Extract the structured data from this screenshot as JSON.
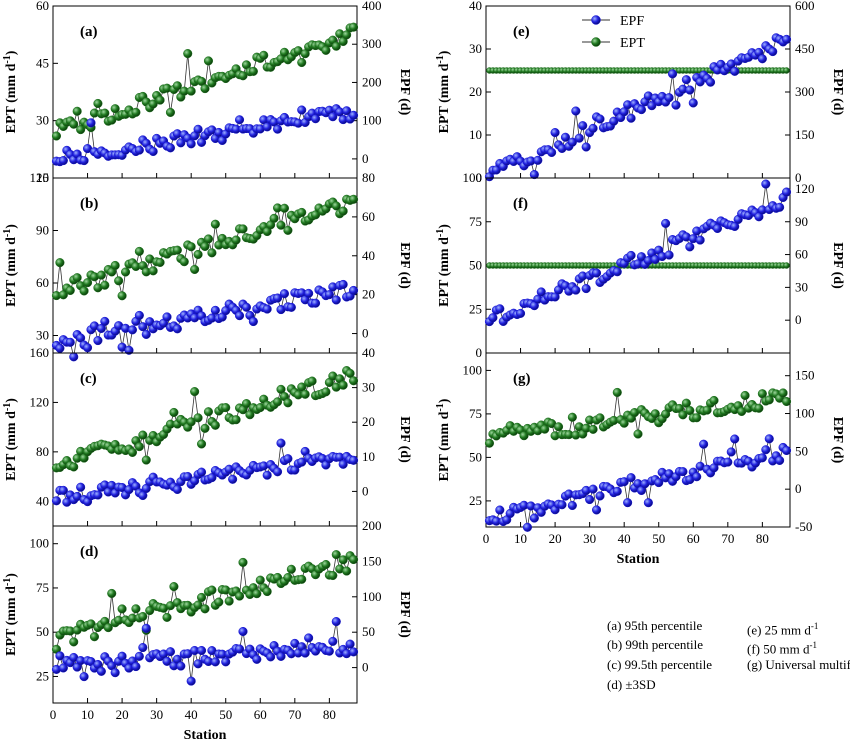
{
  "labels": {
    "ylabel_left": "EPT (mm d",
    "ylabel_sup": "-1",
    "ylabel_close": ")",
    "ylabel_right": "EPF (d)",
    "xlabel": "Station"
  },
  "legend": [
    {
      "label": "EPF",
      "color": "#1515d4"
    },
    {
      "label": "EPT",
      "color": "#1f6e1f"
    }
  ],
  "notes": [
    {
      "text": "(a) 95th percentile"
    },
    {
      "text": "(b) 99th percentile"
    },
    {
      "text": "(c) 99.5th percentile"
    },
    {
      "text": "(d) ±3SD"
    },
    {
      "text": "(e) 25 mm d",
      "sup": "-1"
    },
    {
      "text": "(f) 50 mm d",
      "sup": "-1"
    },
    {
      "text": "(g) Universal multifractals"
    }
  ],
  "chart_data": [
    {
      "panel": "(a)",
      "type": "line",
      "left_ylim": [
        15,
        60
      ],
      "left_ticks": [
        "15",
        "30",
        "45",
        "60"
      ],
      "right_ylim": [
        -50,
        400
      ],
      "right_ticks": [
        "0",
        "100",
        "200",
        "300",
        "400"
      ],
      "ept_start": 27,
      "ept_end": 53,
      "epf_start": 0,
      "epf_end": 120,
      "xlim": [
        0,
        88
      ],
      "xticks": [],
      "legend": false
    },
    {
      "panel": "(b)",
      "type": "line",
      "left_ylim": [
        20,
        120
      ],
      "left_ticks": [
        "30",
        "60",
        "90",
        "120"
      ],
      "right_ylim": [
        -10,
        80
      ],
      "right_ticks": [
        "0",
        "20",
        "40",
        "60",
        "80"
      ],
      "ept_start": 55,
      "ept_end": 106,
      "epf_start": -5,
      "epf_end": 23,
      "xlim": [
        0,
        88
      ],
      "xticks": [],
      "legend": false
    },
    {
      "panel": "(c)",
      "type": "line",
      "left_ylim": [
        20,
        160
      ],
      "left_ticks": [
        "40",
        "80",
        "120",
        "160"
      ],
      "right_ylim": [
        -10,
        40
      ],
      "right_ticks": [
        "0",
        "10",
        "20",
        "30",
        "40"
      ],
      "ept_start": 70,
      "ept_end": 141,
      "epf_start": -2,
      "epf_end": 10,
      "xlim": [
        0,
        88
      ],
      "xticks": [],
      "legend": false
    },
    {
      "panel": "(d)",
      "type": "line",
      "left_ylim": [
        10,
        110
      ],
      "left_ticks": [
        "25",
        "50",
        "75",
        "100"
      ],
      "right_ylim": [
        -50,
        200
      ],
      "right_ticks": [
        "0",
        "50",
        "100",
        "150",
        "200"
      ],
      "ept_start": 46,
      "ept_end": 90,
      "epf_start": 0,
      "epf_end": 30,
      "xlim": [
        0,
        88
      ],
      "xticks": [
        "0",
        "10",
        "20",
        "30",
        "40",
        "50",
        "60",
        "70",
        "80"
      ],
      "legend": false
    },
    {
      "panel": "(e)",
      "type": "line",
      "left_ylim": [
        0,
        40
      ],
      "left_ticks": [
        "0",
        "10",
        "20",
        "30",
        "40"
      ],
      "right_ylim": [
        0,
        600
      ],
      "right_ticks": [
        "0",
        "150",
        "300",
        "450",
        "600"
      ],
      "ept_start": 25,
      "ept_end": 25,
      "epf_start": 10,
      "epf_end": 480,
      "xlim": [
        0,
        88
      ],
      "xticks": [],
      "legend": true
    },
    {
      "panel": "(f)",
      "type": "line",
      "left_ylim": [
        0,
        100
      ],
      "left_ticks": [
        "0",
        "25",
        "50",
        "75",
        "100"
      ],
      "right_ylim": [
        -30,
        130
      ],
      "right_ticks": [
        "0",
        "30",
        "60",
        "90",
        "120"
      ],
      "ept_start": 50,
      "ept_end": 50,
      "epf_start": 0,
      "epf_end": 110,
      "xlim": [
        0,
        88
      ],
      "xticks": [],
      "legend": false
    },
    {
      "panel": "(g)",
      "type": "line",
      "left_ylim": [
        10,
        110
      ],
      "left_ticks": [
        "25",
        "50",
        "75",
        "100"
      ],
      "right_ylim": [
        -50,
        180
      ],
      "right_ticks": [
        "-50",
        "0",
        "50",
        "100",
        "150"
      ],
      "ept_start": 60,
      "ept_end": 85,
      "epf_start": -40,
      "epf_end": 50,
      "xlim": [
        0,
        88
      ],
      "xticks": [
        "0",
        "10",
        "20",
        "30",
        "40",
        "50",
        "60",
        "70",
        "80"
      ],
      "legend": false
    }
  ]
}
